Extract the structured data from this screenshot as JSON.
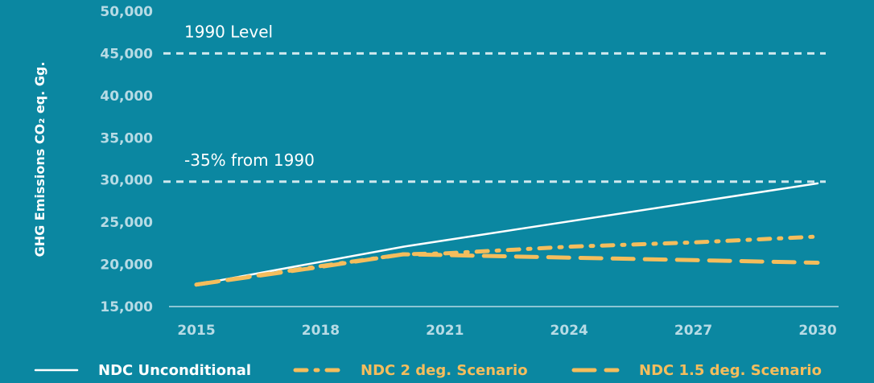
{
  "chart_data": {
    "type": "line",
    "ylabel": "GHG Emissions CO₂ eq. Gg.",
    "xlabel": "",
    "ylim": [
      15000,
      50000
    ],
    "xlim": [
      2015,
      2030
    ],
    "y_ticks": [
      "15,000",
      "20,000",
      "25,000",
      "30,000",
      "35,000",
      "40,000",
      "45,000",
      "50,000"
    ],
    "y_tick_values": [
      15000,
      20000,
      25000,
      30000,
      35000,
      40000,
      45000,
      50000
    ],
    "x_ticks": [
      "2015",
      "2018",
      "2021",
      "2024",
      "2027",
      "2030"
    ],
    "x_tick_values": [
      2015,
      2018,
      2021,
      2024,
      2027,
      2030
    ],
    "reference_lines": [
      {
        "label": "1990 Level",
        "value": 45000
      },
      {
        "label": "-35% from 1990",
        "value": 29800
      }
    ],
    "series": [
      {
        "name": "NDC Unconditional",
        "color": "#ffffff",
        "style": "solid",
        "x": [
          2015,
          2020,
          2030
        ],
        "y": [
          17600,
          22100,
          29600
        ]
      },
      {
        "name": "NDC 2 deg. Scenario",
        "color": "#f5bd5c",
        "style": "dash-dot",
        "x": [
          2015,
          2018,
          2020,
          2021,
          2024,
          2027,
          2030
        ],
        "y": [
          17600,
          19800,
          21200,
          21300,
          22100,
          22600,
          23300
        ]
      },
      {
        "name": "NDC 1.5 deg. Scenario",
        "color": "#f5bd5c",
        "style": "dashed",
        "x": [
          2015,
          2018,
          2020,
          2021,
          2024,
          2027,
          2030
        ],
        "y": [
          17600,
          19700,
          21200,
          21100,
          20800,
          20500,
          20200
        ]
      }
    ],
    "grid": false,
    "legend_position": "bottom"
  }
}
